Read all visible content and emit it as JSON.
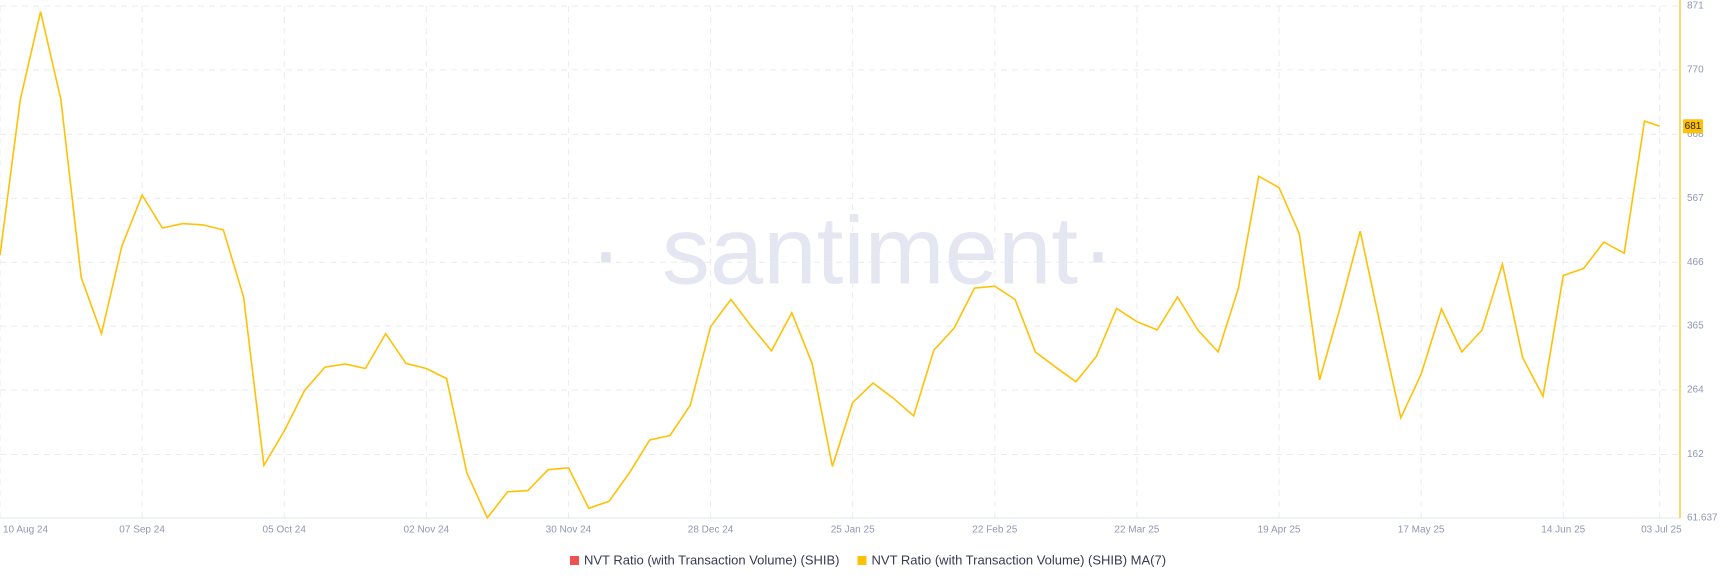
{
  "chart_data": {
    "type": "line",
    "watermark": "santiment",
    "x": [
      "2024-08-10",
      "2024-08-14",
      "2024-08-18",
      "2024-08-22",
      "2024-08-26",
      "2024-08-30",
      "2024-09-03",
      "2024-09-07",
      "2024-09-11",
      "2024-09-15",
      "2024-09-19",
      "2024-09-23",
      "2024-09-27",
      "2024-10-01",
      "2024-10-05",
      "2024-10-09",
      "2024-10-13",
      "2024-10-17",
      "2024-10-21",
      "2024-10-25",
      "2024-10-29",
      "2024-11-02",
      "2024-11-06",
      "2024-11-10",
      "2024-11-14",
      "2024-11-18",
      "2024-11-22",
      "2024-11-26",
      "2024-11-30",
      "2024-12-04",
      "2024-12-08",
      "2024-12-12",
      "2024-12-16",
      "2024-12-20",
      "2024-12-24",
      "2024-12-28",
      "2025-01-01",
      "2025-01-05",
      "2025-01-09",
      "2025-01-13",
      "2025-01-17",
      "2025-01-21",
      "2025-01-25",
      "2025-01-29",
      "2025-02-02",
      "2025-02-06",
      "2025-02-10",
      "2025-02-14",
      "2025-02-18",
      "2025-02-22",
      "2025-02-26",
      "2025-03-02",
      "2025-03-06",
      "2025-03-10",
      "2025-03-14",
      "2025-03-18",
      "2025-03-22",
      "2025-03-26",
      "2025-03-30",
      "2025-04-03",
      "2025-04-07",
      "2025-04-11",
      "2025-04-15",
      "2025-04-19",
      "2025-04-23",
      "2025-04-27",
      "2025-05-01",
      "2025-05-05",
      "2025-05-09",
      "2025-05-13",
      "2025-05-17",
      "2025-05-21",
      "2025-05-25",
      "2025-05-29",
      "2025-06-02",
      "2025-06-06",
      "2025-06-10",
      "2025-06-14",
      "2025-06-18",
      "2025-06-22",
      "2025-06-26",
      "2025-06-30",
      "2025-07-03"
    ],
    "series": [
      {
        "name": "NVT Ratio (with Transaction Volume) (SHIB)",
        "color": "#f0504f"
      },
      {
        "name": "NVT Ratio (with Transaction Volume) (SHIB) MA(7)",
        "color": "#ffc107",
        "axis": "y2",
        "values": [
          477,
          723,
          862,
          723,
          442,
          353,
          491,
          572,
          520,
          527,
          525,
          517,
          411,
          145,
          199,
          263,
          300,
          305,
          298,
          353,
          306,
          298,
          282,
          133,
          62,
          103,
          105,
          138,
          141,
          77,
          88,
          133,
          185,
          192,
          240,
          364,
          407,
          365,
          326,
          386,
          306,
          143,
          244,
          275,
          251,
          223,
          327,
          362,
          425,
          428,
          407,
          324,
          300,
          277,
          317,
          393,
          372,
          359,
          411,
          359,
          324,
          425,
          602,
          584,
          511,
          280,
          393,
          515,
          365,
          220,
          289,
          392,
          324,
          359,
          463,
          315,
          254,
          445,
          456,
          498,
          480,
          689,
          681
        ]
      }
    ],
    "xlim": [
      "2024-08-10",
      "2025-07-07"
    ],
    "xticks": [
      {
        "value": "2024-08-10",
        "label": "10 Aug 24"
      },
      {
        "value": "2024-09-07",
        "label": "07 Sep 24"
      },
      {
        "value": "2024-10-05",
        "label": "05 Oct 24"
      },
      {
        "value": "2024-11-02",
        "label": "02 Nov 24"
      },
      {
        "value": "2024-11-30",
        "label": "30 Nov 24"
      },
      {
        "value": "2024-12-28",
        "label": "28 Dec 24"
      },
      {
        "value": "2025-01-25",
        "label": "25 Jan 25"
      },
      {
        "value": "2025-02-22",
        "label": "22 Feb 25"
      },
      {
        "value": "2025-03-22",
        "label": "22 Mar 25"
      },
      {
        "value": "2025-04-19",
        "label": "19 Apr 25"
      },
      {
        "value": "2025-05-17",
        "label": "17 May 25"
      },
      {
        "value": "2025-06-14",
        "label": "14 Jun 25"
      },
      {
        "value": "2025-07-03",
        "label": "03 Jul 25"
      }
    ],
    "y2lim": [
      61.637,
      871
    ],
    "y2ticks": [
      61.637,
      162,
      264,
      365,
      466,
      567,
      668,
      770,
      871
    ],
    "grid": true
  }
}
